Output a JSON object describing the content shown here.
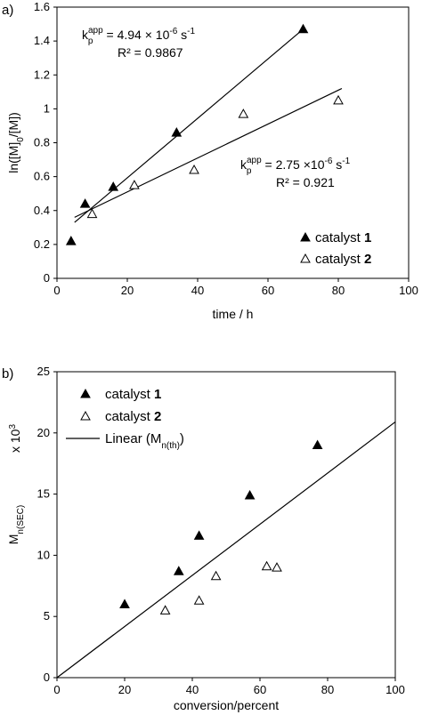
{
  "chart_data": [
    {
      "type": "scatter",
      "panel_label": "a)",
      "xlabel": "time / h",
      "ylabel": {
        "pre": "ln([M]",
        "sub": "0",
        "post": "/[M])"
      },
      "xlim": [
        0,
        100
      ],
      "ylim": [
        0,
        1.6
      ],
      "x_ticks": [
        0,
        20,
        40,
        60,
        80,
        100
      ],
      "y_ticks": [
        0,
        0.2,
        0.4,
        0.6,
        0.8,
        1,
        1.2,
        1.4,
        1.6
      ],
      "series": [
        {
          "name": "catalyst 1",
          "marker": "filled-triangle",
          "x": [
            4,
            8,
            16,
            34,
            70
          ],
          "y": [
            0.22,
            0.44,
            0.54,
            0.86,
            1.47
          ],
          "fit": {
            "x": [
              5,
              70
            ],
            "y": [
              0.33,
              1.47
            ]
          }
        },
        {
          "name": "catalyst 2",
          "marker": "open-triangle",
          "x": [
            10,
            22,
            39,
            53,
            80
          ],
          "y": [
            0.38,
            0.55,
            0.64,
            0.97,
            1.05
          ],
          "fit": {
            "x": [
              5,
              81
            ],
            "y": [
              0.36,
              1.12
            ]
          }
        }
      ],
      "annotations": [
        {
          "k": "k",
          "ksub": "p",
          "ksup": "app",
          "eq": " = 4.94 × 10",
          "exp": "-6",
          "unit": " s",
          "unitexp": "-1",
          "r2": "R² = 0.9867"
        },
        {
          "k": "k",
          "ksub": "p",
          "ksup": "app",
          "eq": " = 2.75 ×10",
          "exp": "-6",
          "unit": " s",
          "unitexp": "-1",
          "r2": "R² = 0.921"
        }
      ],
      "legend": {
        "position": "bottom-right",
        "items": [
          {
            "text": "catalyst ",
            "bold": "1",
            "marker": "filled-triangle"
          },
          {
            "text": "catalyst ",
            "bold": "2",
            "marker": "open-triangle"
          }
        ]
      }
    },
    {
      "type": "scatter",
      "panel_label": "b)",
      "xlabel": "conversion/percent",
      "ylabel": {
        "pre": "M",
        "sub": "n(SEC)"
      },
      "ylabel_multiplier": {
        "text": "x 10",
        "sup": "3"
      },
      "xlim": [
        0,
        100
      ],
      "ylim": [
        0,
        25
      ],
      "x_ticks": [
        0,
        20,
        40,
        60,
        80,
        100
      ],
      "y_ticks": [
        0,
        5,
        10,
        15,
        20,
        25
      ],
      "series": [
        {
          "name": "catalyst 1",
          "marker": "filled-triangle",
          "x": [
            20,
            36,
            42,
            57,
            77
          ],
          "y": [
            6.0,
            8.7,
            11.6,
            14.9,
            19.0
          ]
        },
        {
          "name": "catalyst 2",
          "marker": "open-triangle",
          "x": [
            32,
            42,
            47,
            62,
            65
          ],
          "y": [
            5.5,
            6.3,
            8.3,
            9.1,
            9.0
          ]
        },
        {
          "name": "Linear (Mn(th))",
          "marker": "line",
          "x": [
            0,
            100
          ],
          "y": [
            0,
            20.9
          ]
        }
      ],
      "legend": {
        "position": "top-left",
        "items": [
          {
            "text": "catalyst ",
            "bold": "1",
            "marker": "filled-triangle"
          },
          {
            "text": "catalyst ",
            "bold": "2",
            "marker": "open-triangle"
          },
          {
            "text": "Linear (M",
            "sub": "n(th)",
            "post": ")",
            "marker": "line"
          }
        ]
      }
    }
  ]
}
